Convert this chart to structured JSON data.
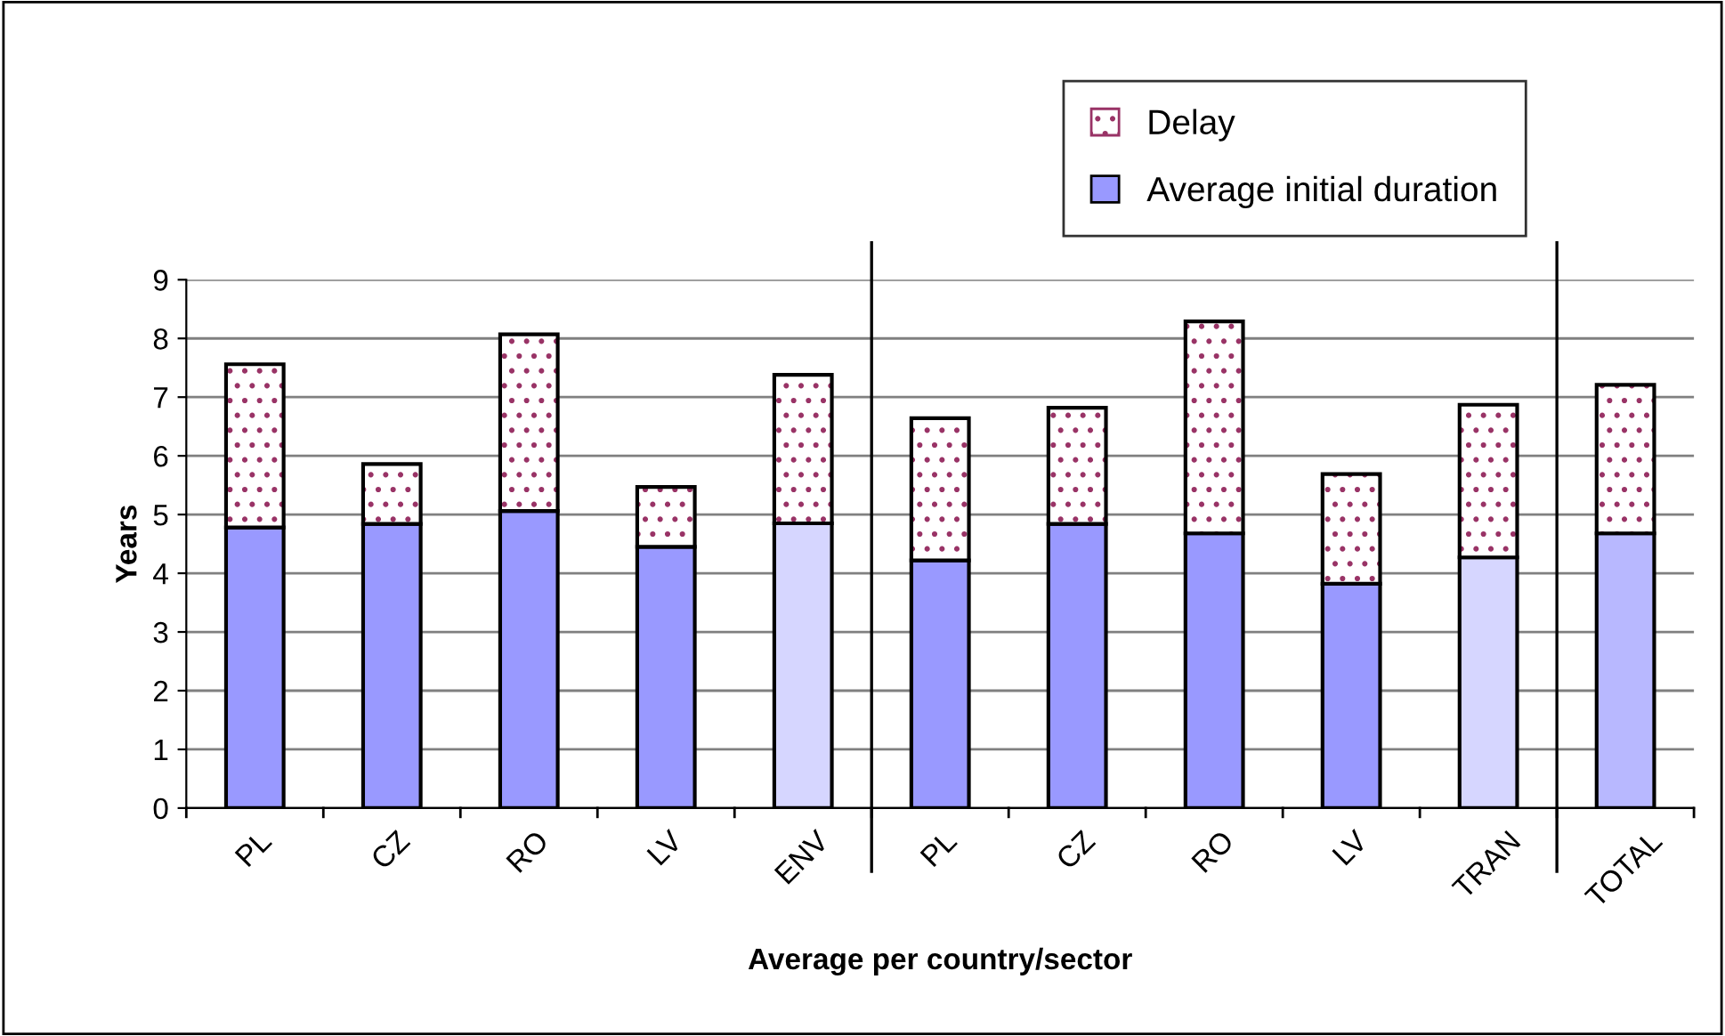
{
  "chart_data": {
    "type": "bar",
    "stacked": true,
    "xlabel": "Average per country/sector",
    "ylabel": "Years",
    "categories": [
      "PL",
      "CZ",
      "RO",
      "LV",
      "ENV",
      "PL",
      "CZ",
      "RO",
      "LV",
      "TRAN",
      "TOTAL"
    ],
    "series": [
      {
        "name": "Average initial duration",
        "colors": [
          "#9999ff",
          "#9999ff",
          "#9999ff",
          "#9999ff",
          "#d6d6ff",
          "#9999ff",
          "#9999ff",
          "#9999ff",
          "#9999ff",
          "#d6d6ff",
          "#b8b8ff"
        ],
        "values": [
          4.78,
          4.84,
          5.06,
          4.45,
          4.85,
          4.22,
          4.84,
          4.68,
          3.82,
          4.27,
          4.68
        ]
      },
      {
        "name": "Delay",
        "color": "#993366",
        "values": [
          2.78,
          1.02,
          3.01,
          1.02,
          2.53,
          2.42,
          1.98,
          3.61,
          1.87,
          2.6,
          2.53
        ]
      }
    ],
    "ylim": [
      0,
      9
    ],
    "yticks": [
      0,
      1,
      2,
      3,
      4,
      5,
      6,
      7,
      8,
      9
    ],
    "grid": "y",
    "legend": "top right"
  }
}
